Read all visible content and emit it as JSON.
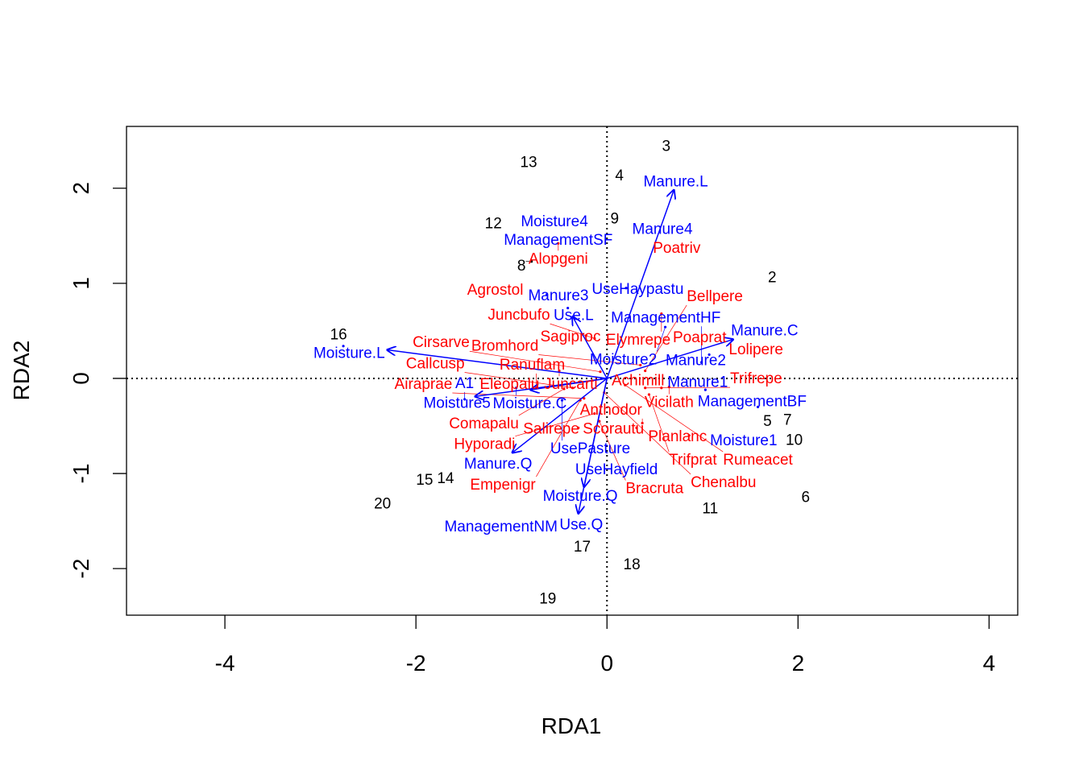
{
  "chart_data": {
    "type": "scatter",
    "title": "",
    "xlabel": "RDA1",
    "ylabel": "RDA2",
    "xlim": [
      -5.03,
      4.3
    ],
    "ylim": [
      -2.49,
      2.65
    ],
    "xticks": [
      -4,
      -2,
      0,
      2,
      4
    ],
    "yticks": [
      -2,
      -1,
      0,
      1,
      2
    ],
    "reference_lines": "dotted at x=0 and y=0",
    "colors": {
      "sites": "#000000",
      "species": "#ff0000",
      "constraints": "#0000ff"
    },
    "sites": [
      {
        "label": "2",
        "x": 1.73,
        "y": 1.07
      },
      {
        "label": "3",
        "x": 0.62,
        "y": 2.45
      },
      {
        "label": "4",
        "x": 0.13,
        "y": 2.14
      },
      {
        "label": "5",
        "x": 1.68,
        "y": -0.44
      },
      {
        "label": "6",
        "x": 2.08,
        "y": -1.24
      },
      {
        "label": "7",
        "x": 1.89,
        "y": -0.43
      },
      {
        "label": "8",
        "x": -0.79,
        "y": 1.23
      },
      {
        "label": "9",
        "x": 0.08,
        "y": 1.69
      },
      {
        "label": "10",
        "x": 1.96,
        "y": -0.64
      },
      {
        "label": "11",
        "x": 1.08,
        "y": -1.36
      },
      {
        "label": "12",
        "x": -1.19,
        "y": 1.64
      },
      {
        "label": "13",
        "x": -0.82,
        "y": 2.28
      },
      {
        "label": "14",
        "x": -1.69,
        "y": -1.04
      },
      {
        "label": "15",
        "x": -1.91,
        "y": -1.06
      },
      {
        "label": "16",
        "x": -2.81,
        "y": 0.47
      },
      {
        "label": "17",
        "x": -0.26,
        "y": -1.76
      },
      {
        "label": "18",
        "x": 0.26,
        "y": -1.95
      },
      {
        "label": "19",
        "x": -0.62,
        "y": -2.31
      },
      {
        "label": "20",
        "x": -2.35,
        "y": -1.31
      }
    ],
    "species": [
      {
        "label": "Alopgeni",
        "x": -0.51,
        "y": 1.42
      },
      {
        "label": "Poatriv",
        "x": 0.73,
        "y": 1.38
      },
      {
        "label": "Agrostol",
        "x": -1.17,
        "y": 0.94
      },
      {
        "label": "Elymrepe",
        "x": 0.57,
        "y": 0.68
      },
      {
        "label": "Sagiproc",
        "x": -0.22,
        "y": 0.45
      },
      {
        "label": "Juncbufo",
        "x": -0.13,
        "y": 0.42
      },
      {
        "label": "Poaprat",
        "x": 0.97,
        "y": 0.44
      },
      {
        "label": "Lolipere",
        "x": 1.56,
        "y": 0.39
      },
      {
        "label": "Juncarti",
        "x": -0.5,
        "y": 0.08
      },
      {
        "label": "Cirsarve",
        "x": -0.07,
        "y": 0.07
      },
      {
        "label": "Bromhord",
        "x": 0.35,
        "y": 0.14
      },
      {
        "label": "Bellpere",
        "x": 0.4,
        "y": 0.08
      },
      {
        "label": "Eleopalu",
        "x": -1.16,
        "y": -0.1
      },
      {
        "label": "Ranuflam",
        "x": -0.74,
        "y": -0.1
      },
      {
        "label": "Comapalu",
        "x": -0.45,
        "y": -0.11
      },
      {
        "label": "Callcusp",
        "x": -0.36,
        "y": -0.1
      },
      {
        "label": "Rumeacet",
        "x": 0.19,
        "y": -0.07
      },
      {
        "label": "Trifrepe",
        "x": 0.4,
        "y": -0.1
      },
      {
        "label": "Achimill",
        "x": 0.57,
        "y": -0.1
      },
      {
        "label": "Vicilath",
        "x": 0.65,
        "y": -0.09
      },
      {
        "label": "Trifprat",
        "x": 0.44,
        "y": -0.17
      },
      {
        "label": "Airaprae",
        "x": -0.24,
        "y": -0.21
      },
      {
        "label": "Chenalbu",
        "x": -0.03,
        "y": -0.15
      },
      {
        "label": "Empenigr",
        "x": -0.28,
        "y": -0.23
      },
      {
        "label": "Hyporadi",
        "x": -0.13,
        "y": -0.37
      },
      {
        "label": "Bracruta",
        "x": -0.08,
        "y": -0.45
      },
      {
        "label": "Anthodor",
        "x": 0.37,
        "y": -0.47
      },
      {
        "label": "Salirepe",
        "x": -0.3,
        "y": -0.52
      },
      {
        "label": "Scorautu",
        "x": 0.31,
        "y": -0.52
      },
      {
        "label": "Planlanc",
        "x": 0.86,
        "y": -0.6
      }
    ],
    "constraints": [
      {
        "label": "Manure.L",
        "x": 0.72,
        "y": 2.08,
        "arrow": [
          0.7,
          1.98
        ]
      },
      {
        "label": "Moisture4",
        "x": -0.55,
        "y": 1.66
      },
      {
        "label": "ManagementSF",
        "x": -0.51,
        "y": 1.54
      },
      {
        "label": "Manure4",
        "x": 0.58,
        "y": 1.58
      },
      {
        "label": "Manure3",
        "x": -0.63,
        "y": 0.88
      },
      {
        "label": "UseHaypastu",
        "x": 0.2,
        "y": 0.95
      },
      {
        "label": "Use.L",
        "x": -0.41,
        "y": 0.74,
        "arrow": [
          -0.36,
          0.65
        ]
      },
      {
        "label": "Moisture2",
        "x": 0.61,
        "y": 0.54
      },
      {
        "label": "Manure.C",
        "x": 1.65,
        "y": 0.51,
        "arrow": [
          1.32,
          0.41
        ]
      },
      {
        "label": "Manure2",
        "x": 1.07,
        "y": 0.25
      },
      {
        "label": "ManagementHF",
        "x": 0.99,
        "y": 0.17
      },
      {
        "label": "Manure1",
        "x": 1.03,
        "y": -0.12
      },
      {
        "label": "ManagementBF",
        "x": 1.58,
        "y": -0.3
      },
      {
        "label": "Moisture1",
        "x": 1.39,
        "y": -0.6
      },
      {
        "label": "Moisture.L",
        "x": -2.76,
        "y": 0.34,
        "arrow": [
          -2.3,
          0.3
        ]
      },
      {
        "label": "Moisture5",
        "x": -1.57,
        "y": -0.25
      },
      {
        "label": "A1",
        "x": -1.49,
        "y": -0.22,
        "arrow": [
          -1.38,
          -0.19
        ]
      },
      {
        "label": "Moisture.C",
        "x": -0.95,
        "y": -0.1,
        "arrow": [
          -0.8,
          -0.12
        ]
      },
      {
        "label": "UsePasture",
        "x": -0.47,
        "y": -0.23
      },
      {
        "label": "Manure.Q",
        "x": -1.14,
        "y": -0.89,
        "arrow": [
          -0.99,
          -0.78
        ]
      },
      {
        "label": "UseHayfield",
        "x": 0.1,
        "y": -0.95
      },
      {
        "label": "Moisture.Q",
        "x": -0.28,
        "y": -1.23,
        "arrow": [
          -0.24,
          -1.14
        ]
      },
      {
        "label": "Use.Q",
        "x": -0.31,
        "y": -1.53,
        "arrow": [
          -0.3,
          -1.42
        ]
      },
      {
        "label": "ManagementNM",
        "x": -1.11,
        "y": -1.55
      }
    ]
  }
}
